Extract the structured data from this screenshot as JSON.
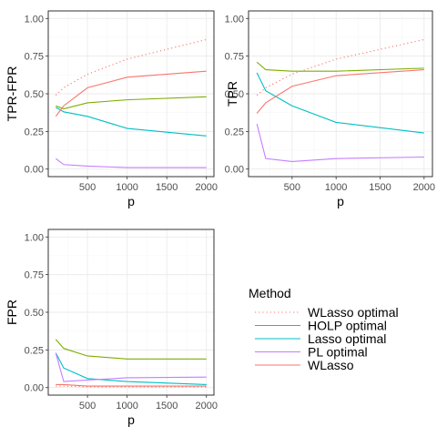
{
  "chart_data": [
    {
      "type": "line",
      "xlabel": "p",
      "ylabel": "TPR-FPR",
      "x_ticks": [
        "500",
        "1000",
        "1500",
        "2000"
      ],
      "y_ticks": [
        "0.00",
        "0.25",
        "0.50",
        "0.75",
        "1.00"
      ],
      "xlim": [
        0,
        2000
      ],
      "ylim": [
        0,
        1
      ],
      "grid": true,
      "x": [
        100,
        200,
        500,
        1000,
        2000
      ],
      "series": [
        {
          "name": "WLasso optimal",
          "values": [
            0.49,
            0.54,
            0.63,
            0.73,
            0.86
          ]
        },
        {
          "name": "HOLP optimal",
          "values": [
            0.42,
            0.4,
            0.44,
            0.46,
            0.48
          ]
        },
        {
          "name": "Lasso optimal",
          "values": [
            0.41,
            0.38,
            0.35,
            0.27,
            0.22
          ]
        },
        {
          "name": "PL optimal",
          "values": [
            0.07,
            0.03,
            0.02,
            0.01,
            0.01
          ]
        },
        {
          "name": "WLasso",
          "values": [
            0.35,
            0.42,
            0.54,
            0.61,
            0.65
          ]
        }
      ]
    },
    {
      "type": "line",
      "xlabel": "p",
      "ylabel": "TPR",
      "x_ticks": [
        "500",
        "1000",
        "1500",
        "2000"
      ],
      "y_ticks": [
        "0.00",
        "0.25",
        "0.50",
        "0.75",
        "1.00"
      ],
      "xlim": [
        0,
        2000
      ],
      "ylim": [
        0,
        1
      ],
      "grid": true,
      "x": [
        100,
        200,
        500,
        1000,
        2000
      ],
      "series": [
        {
          "name": "WLasso optimal",
          "values": [
            0.49,
            0.54,
            0.63,
            0.73,
            0.86
          ]
        },
        {
          "name": "HOLP optimal",
          "values": [
            0.71,
            0.66,
            0.65,
            0.65,
            0.67
          ]
        },
        {
          "name": "Lasso optimal",
          "values": [
            0.64,
            0.52,
            0.42,
            0.31,
            0.24
          ]
        },
        {
          "name": "PL optimal",
          "values": [
            0.3,
            0.07,
            0.05,
            0.07,
            0.08
          ]
        },
        {
          "name": "WLasso",
          "values": [
            0.37,
            0.44,
            0.55,
            0.62,
            0.66
          ]
        }
      ]
    },
    {
      "type": "line",
      "xlabel": "p",
      "ylabel": "FPR",
      "x_ticks": [
        "500",
        "1000",
        "1500",
        "2000"
      ],
      "y_ticks": [
        "0.00",
        "0.25",
        "0.50",
        "0.75",
        "1.00"
      ],
      "xlim": [
        0,
        2000
      ],
      "ylim": [
        0,
        1
      ],
      "grid": true,
      "x": [
        100,
        200,
        500,
        1000,
        2000
      ],
      "series": [
        {
          "name": "WLasso optimal",
          "values": [
            0.01,
            0.01,
            0.005,
            0.005,
            0.005
          ]
        },
        {
          "name": "HOLP optimal",
          "values": [
            0.32,
            0.26,
            0.21,
            0.19,
            0.19
          ]
        },
        {
          "name": "Lasso optimal",
          "values": [
            0.23,
            0.13,
            0.06,
            0.04,
            0.02
          ]
        },
        {
          "name": "PL optimal",
          "values": [
            0.23,
            0.04,
            0.05,
            0.065,
            0.07
          ]
        },
        {
          "name": "WLasso",
          "values": [
            0.02,
            0.02,
            0.01,
            0.01,
            0.01
          ]
        }
      ]
    }
  ],
  "legend": {
    "title": "Method",
    "placement": "bottom-right",
    "items": [
      {
        "label": "WLasso optimal",
        "color": "#f8766d",
        "style": "dotted"
      },
      {
        "label": "HOLP optimal",
        "color": "#7cae00",
        "style": "solid"
      },
      {
        "label": "Lasso optimal",
        "color": "#00bfc4",
        "style": "solid"
      },
      {
        "label": "PL optimal",
        "color": "#c77cff",
        "style": "solid"
      },
      {
        "label": "WLasso",
        "color": "#f8766d",
        "style": "solid"
      }
    ]
  },
  "series_styles": {
    "WLasso optimal": {
      "color": "#f8766d",
      "dash": "dotted"
    },
    "HOLP optimal": {
      "color": "#7cae00",
      "dash": "solid"
    },
    "Lasso optimal": {
      "color": "#00bfc4",
      "dash": "solid"
    },
    "PL optimal": {
      "color": "#c77cff",
      "dash": "solid"
    },
    "WLasso": {
      "color": "#f8766d",
      "dash": "solid"
    }
  }
}
